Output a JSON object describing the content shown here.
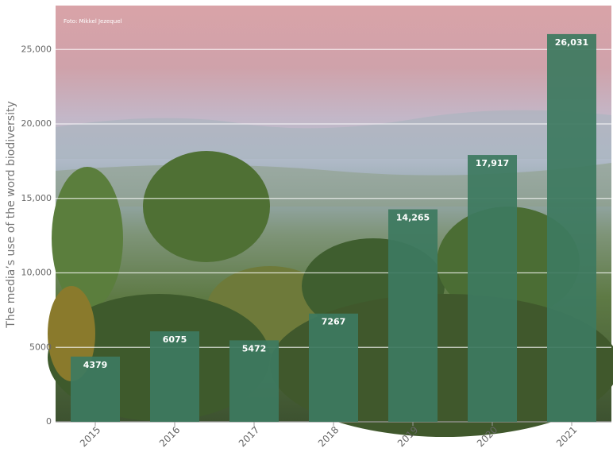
{
  "chart_data": {
    "type": "bar",
    "annotation": "Foto: Mikkel Jezequel",
    "ylabel": "The media’s use of the word biodiversity",
    "categories": [
      "2015",
      "2016",
      "2017",
      "2018",
      "2019",
      "2020",
      "2021"
    ],
    "values": [
      4379,
      6075,
      5472,
      7267,
      14265,
      17917,
      26031
    ],
    "value_labels": [
      "4379",
      "6075",
      "5472",
      "7267",
      "14,265",
      "17,917",
      "26,031"
    ],
    "color": "#3d7a60",
    "ylim": [
      0,
      28000
    ],
    "yticks": [
      0,
      5000,
      {
        "value": 10000,
        "label": "10,000"
      },
      {
        "value": 15000,
        "label": "15,000"
      },
      {
        "value": 20000,
        "label": "20,000"
      },
      {
        "value": 25000,
        "label": "25,000"
      }
    ],
    "grid": true
  }
}
